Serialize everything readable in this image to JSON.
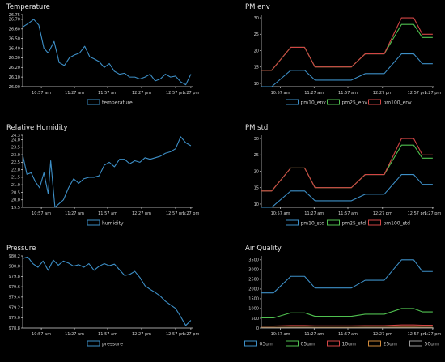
{
  "chart_data": [
    {
      "id": "temperature",
      "type": "line",
      "title": "Temperature",
      "ylim": [
        26.0,
        26.75
      ],
      "yticks": [
        26.0,
        26.1,
        26.2,
        26.3,
        26.4,
        26.5,
        26.6,
        26.7,
        26.75
      ],
      "ytick_labels": [
        "26.00",
        "26.10",
        "26.20",
        "26.30",
        "26.40",
        "26.50",
        "26.60",
        "26.70",
        "26.75"
      ],
      "xlim": [
        0,
        100
      ],
      "xtick_positions": [
        11,
        30.5,
        50,
        70,
        90,
        99
      ],
      "xtick_labels": [
        "10:57 am",
        "11:27 am",
        "11:57 am",
        "12:27 pm",
        "12:57 pm",
        "1:27 pm"
      ],
      "series": [
        {
          "name": "temperature",
          "color": "#3d8fc7",
          "x": [
            0,
            3.5,
            6.5,
            9.5,
            12.5,
            15,
            18.5,
            21.5,
            24.5,
            27.5,
            30.5,
            33.5,
            36.5,
            39.5,
            42,
            45,
            48,
            51,
            54,
            57,
            60,
            63,
            66,
            69,
            72,
            75,
            78,
            81,
            84,
            87,
            90,
            93,
            96,
            99
          ],
          "values": [
            26.62,
            26.66,
            26.7,
            26.64,
            26.4,
            26.35,
            26.47,
            26.25,
            26.22,
            26.3,
            26.33,
            26.35,
            26.42,
            26.31,
            26.29,
            26.26,
            26.2,
            26.24,
            26.16,
            26.13,
            26.14,
            26.1,
            26.1,
            26.08,
            26.1,
            26.13,
            26.06,
            26.08,
            26.13,
            26.1,
            26.11,
            26.05,
            26.02,
            26.13
          ]
        }
      ]
    },
    {
      "id": "pm-env",
      "type": "line",
      "title": "PM env",
      "ylim": [
        9,
        31
      ],
      "yticks": [
        10,
        15,
        20,
        25,
        30
      ],
      "ytick_labels": [
        "10",
        "15",
        "20",
        "25",
        "30"
      ],
      "xlim": [
        0,
        100
      ],
      "xtick_positions": [
        11,
        30.5,
        50,
        70,
        90,
        99
      ],
      "xtick_labels": [
        "10:57 am",
        "11:27 am",
        "11:57 am",
        "12:27 pm",
        "12:57 pm",
        "1:27 pm"
      ],
      "series": [
        {
          "name": "pm10_env",
          "color": "#3d8fc7",
          "x": [
            0,
            6,
            17,
            25,
            31,
            37,
            52,
            60,
            71,
            81,
            88,
            93,
            99
          ],
          "values": [
            9,
            9,
            14,
            14,
            11,
            11,
            11,
            13,
            13,
            19,
            19,
            16,
            16
          ]
        },
        {
          "name": "pm25_env",
          "color": "#4fc04f",
          "x": [
            0,
            6,
            17,
            25,
            31,
            37,
            52,
            60,
            71,
            81,
            88,
            93,
            99
          ],
          "values": [
            14,
            14,
            21,
            21,
            15,
            15,
            15,
            19,
            19,
            28,
            28,
            24,
            24
          ]
        },
        {
          "name": "pm100_env",
          "color": "#d24545",
          "x": [
            0,
            6,
            17,
            25,
            31,
            37,
            52,
            60,
            71,
            81,
            88,
            93,
            99
          ],
          "values": [
            14,
            14,
            21,
            21,
            15,
            15,
            15,
            19,
            19,
            30,
            30,
            25,
            25
          ]
        }
      ]
    },
    {
      "id": "relative-humidity",
      "type": "line",
      "title": "Relative Humidity",
      "ylim": [
        19.5,
        24.3
      ],
      "yticks": [
        19.5,
        20.0,
        20.5,
        21.0,
        21.5,
        22.0,
        22.5,
        23.0,
        23.5,
        24.0,
        24.3
      ],
      "ytick_labels": [
        "19.5",
        "20.0",
        "20.5",
        "21.0",
        "21.5",
        "22.0",
        "22.5",
        "23.0",
        "23.5",
        "24.0",
        "24.3"
      ],
      "xlim": [
        0,
        100
      ],
      "xtick_positions": [
        11,
        30.5,
        50,
        70,
        90,
        99
      ],
      "xtick_labels": [
        "10:57 am",
        "11:27 am",
        "11:57 am",
        "12:27 pm",
        "12:57 pm",
        "1:27 pm"
      ],
      "series": [
        {
          "name": "humidity",
          "color": "#3d8fc7",
          "x": [
            0,
            2.5,
            5,
            7.5,
            10,
            12.5,
            15,
            16.5,
            19,
            21,
            24,
            27,
            30,
            33,
            36,
            39,
            42,
            45,
            48,
            51,
            54,
            57,
            60,
            63,
            66,
            69,
            72,
            75,
            78,
            81,
            84,
            87,
            90,
            93,
            96,
            99
          ],
          "values": [
            23.0,
            21.7,
            21.8,
            21.2,
            20.8,
            21.8,
            20.4,
            22.6,
            19.5,
            19.7,
            20.0,
            20.8,
            21.4,
            21.1,
            21.4,
            21.5,
            21.5,
            21.6,
            22.3,
            22.5,
            22.2,
            22.7,
            22.7,
            22.4,
            22.6,
            22.5,
            22.8,
            22.7,
            22.8,
            22.9,
            23.1,
            23.2,
            23.4,
            24.2,
            23.8,
            23.6
          ]
        }
      ]
    },
    {
      "id": "pm-std",
      "type": "line",
      "title": "PM std",
      "ylim": [
        9,
        31
      ],
      "yticks": [
        10,
        15,
        20,
        25,
        30
      ],
      "ytick_labels": [
        "10",
        "15",
        "20",
        "25",
        "30"
      ],
      "xlim": [
        0,
        100
      ],
      "xtick_positions": [
        11,
        30.5,
        50,
        70,
        90,
        99
      ],
      "xtick_labels": [
        "10:57 am",
        "11:27 am",
        "11:57 am",
        "12:27 pm",
        "12:57 pm",
        "1:27 pm"
      ],
      "series": [
        {
          "name": "pm10_std",
          "color": "#3d8fc7",
          "x": [
            0,
            6,
            17,
            25,
            31,
            37,
            52,
            60,
            71,
            81,
            88,
            93,
            99
          ],
          "values": [
            9,
            9,
            14,
            14,
            11,
            11,
            11,
            13,
            13,
            19,
            19,
            16,
            16
          ]
        },
        {
          "name": "pm25_std",
          "color": "#4fc04f",
          "x": [
            0,
            6,
            17,
            25,
            31,
            37,
            52,
            60,
            71,
            81,
            88,
            93,
            99
          ],
          "values": [
            14,
            14,
            21,
            21,
            15,
            15,
            15,
            19,
            19,
            28,
            28,
            24,
            24
          ]
        },
        {
          "name": "pm100_std",
          "color": "#d24545",
          "x": [
            0,
            6,
            17,
            25,
            31,
            37,
            52,
            60,
            71,
            81,
            88,
            93,
            99
          ],
          "values": [
            14,
            14,
            21,
            21,
            15,
            15,
            15,
            19,
            19,
            30,
            30,
            25,
            25
          ]
        }
      ]
    },
    {
      "id": "pressure",
      "type": "line",
      "title": "Pressure",
      "ylim": [
        978.8,
        980.2
      ],
      "yticks": [
        978.8,
        979.0,
        979.2,
        979.4,
        979.6,
        979.8,
        980.0,
        980.2
      ],
      "ytick_labels": [
        "978.8",
        "979.0",
        "979.2",
        "979.4",
        "979.6",
        "979.8",
        "980.0",
        "980.2"
      ],
      "xlim": [
        0,
        100
      ],
      "xtick_positions": [
        11,
        30.5,
        50,
        70,
        90,
        99
      ],
      "xtick_labels": [
        "10:57 am",
        "11:27 am",
        "11:57 am",
        "12:27 pm",
        "12:57 pm",
        "1:27 pm"
      ],
      "series": [
        {
          "name": "pressure",
          "color": "#3d8fc7",
          "x": [
            0,
            3,
            6,
            9,
            12,
            15,
            18,
            21,
            24,
            27,
            30,
            33,
            36,
            39,
            42,
            45,
            48,
            51,
            54,
            57,
            60,
            63,
            66,
            69,
            72,
            75,
            78,
            81,
            84,
            87,
            90,
            93,
            96,
            99
          ],
          "values": [
            980.15,
            980.18,
            980.05,
            979.98,
            980.1,
            979.92,
            980.12,
            980.02,
            980.1,
            980.06,
            980.0,
            980.03,
            979.98,
            980.05,
            979.92,
            980.0,
            980.05,
            980.01,
            980.04,
            979.93,
            979.82,
            979.84,
            979.9,
            979.78,
            979.62,
            979.55,
            979.49,
            979.42,
            979.32,
            979.25,
            979.18,
            979.02,
            978.85,
            978.95
          ]
        }
      ]
    },
    {
      "id": "air-quality",
      "type": "line",
      "title": "Air Quality",
      "ylim": [
        0,
        3700
      ],
      "yticks": [
        0,
        500,
        1000,
        1500,
        2000,
        2500,
        3000,
        3500
      ],
      "ytick_labels": [
        "0",
        "500",
        "1000",
        "1500",
        "2000",
        "2500",
        "3000",
        "3500"
      ],
      "xlim": [
        0,
        100
      ],
      "xtick_positions": [
        11,
        30.5,
        50,
        70,
        90,
        99
      ],
      "xtick_labels": [
        "10:57 am",
        "11:27 am",
        "11:57 am",
        "12:27 pm",
        "12:57 pm",
        "1:27 pm"
      ],
      "series": [
        {
          "name": "03um",
          "color": "#3d8fc7",
          "x": [
            0,
            7,
            17,
            25,
            31,
            37,
            52,
            60,
            71,
            81,
            88,
            93,
            99
          ],
          "values": [
            1800,
            1800,
            2650,
            2650,
            2050,
            2050,
            2050,
            2450,
            2450,
            3500,
            3500,
            2900,
            2900
          ]
        },
        {
          "name": "05um",
          "color": "#4fc04f",
          "x": [
            0,
            7,
            17,
            25,
            31,
            37,
            52,
            60,
            71,
            81,
            88,
            93,
            99
          ],
          "values": [
            520,
            520,
            780,
            780,
            600,
            600,
            600,
            710,
            710,
            1000,
            1000,
            830,
            830
          ]
        },
        {
          "name": "10um",
          "color": "#d24545",
          "x": [
            0,
            7,
            17,
            25,
            31,
            37,
            52,
            60,
            71,
            81,
            88,
            93,
            99
          ],
          "values": [
            100,
            100,
            130,
            130,
            110,
            110,
            110,
            125,
            125,
            160,
            160,
            145,
            145
          ]
        },
        {
          "name": "25um",
          "color": "#d08a3a",
          "x": [
            0,
            7,
            17,
            25,
            31,
            37,
            52,
            60,
            71,
            81,
            88,
            93,
            99
          ],
          "values": [
            30,
            30,
            35,
            35,
            30,
            30,
            30,
            35,
            35,
            40,
            40,
            35,
            35
          ]
        },
        {
          "name": "50um",
          "color": "#9a9a9a",
          "x": [
            0,
            7,
            17,
            25,
            31,
            37,
            52,
            60,
            71,
            81,
            88,
            93,
            99
          ],
          "values": [
            5,
            5,
            7,
            7,
            5,
            5,
            5,
            6,
            6,
            8,
            8,
            7,
            7
          ]
        }
      ]
    }
  ]
}
